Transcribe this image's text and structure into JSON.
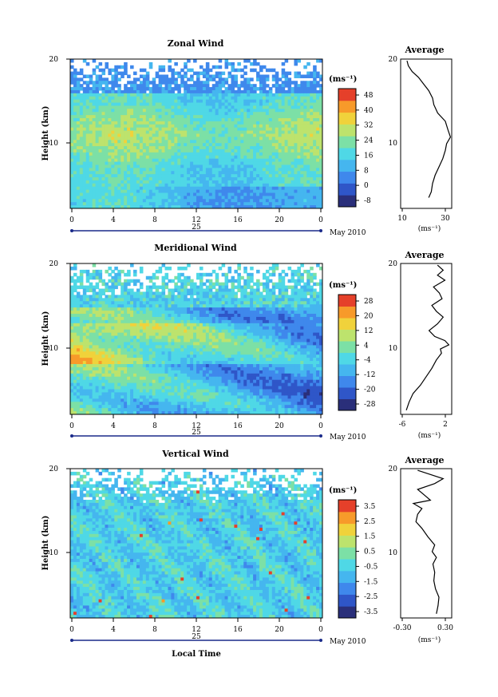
{
  "colorscale": [
    "#2a2f7a",
    "#2f56c8",
    "#3f88ec",
    "#45b6ef",
    "#4fd8e6",
    "#7ce0a6",
    "#bde36d",
    "#f0d23b",
    "#f79a2a",
    "#e5402a"
  ],
  "shared": {
    "date_label": "25",
    "month_label": "May 2010",
    "time_xlabel": "Local Time",
    "height_ylabel": "Height (km)",
    "avg_xlabel": "(ms⁻¹)",
    "x_ticks": [
      "0",
      "4",
      "8",
      "12",
      "16",
      "20",
      "0"
    ],
    "y_ticks": [
      "20",
      "10"
    ]
  },
  "chart_data": [
    {
      "type": "heatmap",
      "title": "Zonal Wind",
      "xlabel": "",
      "ylabel": "Height (km)",
      "x_range": [
        0,
        24
      ],
      "y_range": [
        2,
        20
      ],
      "x_ticks": [
        "0",
        "4",
        "8",
        "12",
        "16",
        "20",
        "0"
      ],
      "y_ticks": [
        "20",
        "10"
      ],
      "colorbar": {
        "unit": "(ms⁻¹)",
        "ticks": [
          "48",
          "40",
          "32",
          "24",
          "16",
          "8",
          "0",
          "-8"
        ],
        "range": [
          -12,
          52
        ]
      },
      "average": {
        "title": "Average",
        "x_range": [
          0,
          40
        ],
        "x_ticks": [
          "10",
          "30"
        ],
        "y_ticks": [
          "20",
          "10"
        ],
        "profile": [
          [
            22,
            3.3
          ],
          [
            24,
            4.0
          ],
          [
            25,
            5.0
          ],
          [
            27,
            6.0
          ],
          [
            30,
            7.0
          ],
          [
            33,
            8.0
          ],
          [
            35,
            9.0
          ],
          [
            36,
            9.8
          ],
          [
            39,
            10.6
          ],
          [
            37,
            11.5
          ],
          [
            35,
            12.5
          ],
          [
            29,
            13.5
          ],
          [
            26,
            14.5
          ],
          [
            25,
            15.3
          ],
          [
            22,
            16.2
          ],
          [
            18,
            17.0
          ],
          [
            14,
            17.8
          ],
          [
            9,
            18.5
          ],
          [
            6,
            19.2
          ],
          [
            5,
            19.8
          ]
        ]
      }
    },
    {
      "type": "heatmap",
      "title": "Meridional Wind",
      "xlabel": "",
      "ylabel": "Height (km)",
      "x_range": [
        0,
        24
      ],
      "y_range": [
        2,
        20
      ],
      "x_ticks": [
        "0",
        "4",
        "8",
        "12",
        "16",
        "20",
        "0"
      ],
      "y_ticks": [
        "20",
        "10"
      ],
      "colorbar": {
        "unit": "(ms⁻¹)",
        "ticks": [
          "28",
          "20",
          "12",
          "4",
          "-4",
          "-12",
          "-20",
          "-28"
        ],
        "range": [
          -32,
          32
        ]
      },
      "average": {
        "title": "Average",
        "x_range": [
          -6,
          3
        ],
        "x_ticks": [
          "-6",
          "2"
        ],
        "y_ticks": [
          "20",
          "10"
        ],
        "profile": [
          [
            -5.0,
            2.5
          ],
          [
            -4.5,
            3.5
          ],
          [
            -3.8,
            4.5
          ],
          [
            -2.5,
            5.5
          ],
          [
            -1.5,
            6.5
          ],
          [
            -0.5,
            7.5
          ],
          [
            0.3,
            8.5
          ],
          [
            1.2,
            9.3
          ],
          [
            1.0,
            9.8
          ],
          [
            2.5,
            10.3
          ],
          [
            1.8,
            10.8
          ],
          [
            0.0,
            11.3
          ],
          [
            -1.0,
            12.0
          ],
          [
            0.5,
            12.8
          ],
          [
            1.5,
            13.6
          ],
          [
            0.3,
            14.3
          ],
          [
            -0.5,
            15.0
          ],
          [
            1.3,
            15.8
          ],
          [
            0.8,
            16.5
          ],
          [
            -0.2,
            17.2
          ],
          [
            1.8,
            18.0
          ],
          [
            0.5,
            18.6
          ],
          [
            1.5,
            19.2
          ],
          [
            0.5,
            19.8
          ]
        ]
      }
    },
    {
      "type": "heatmap",
      "title": "Vertical Wind",
      "xlabel": "Local Time",
      "ylabel": "Height (km)",
      "x_range": [
        0,
        24
      ],
      "y_range": [
        2,
        20
      ],
      "x_ticks": [
        "0",
        "4",
        "8",
        "12",
        "16",
        "20",
        "0"
      ],
      "y_ticks": [
        "20",
        "10"
      ],
      "colorbar": {
        "unit": "(ms⁻¹)",
        "ticks": [
          "3.5",
          "2.5",
          "1.5",
          "0.5",
          "-0.5",
          "-1.5",
          "-2.5",
          "-3.5"
        ],
        "range": [
          -4,
          4
        ]
      },
      "average": {
        "title": "Average",
        "x_range": [
          -0.3,
          0.3
        ],
        "x_ticks": [
          "-0.30",
          "0.30"
        ],
        "y_ticks": [
          "20",
          "10"
        ],
        "profile": [
          [
            0.12,
            2.5
          ],
          [
            0.14,
            3.5
          ],
          [
            0.15,
            4.5
          ],
          [
            0.11,
            5.5
          ],
          [
            0.09,
            6.5
          ],
          [
            0.1,
            7.5
          ],
          [
            0.08,
            8.5
          ],
          [
            0.12,
            9.3
          ],
          [
            0.07,
            10.0
          ],
          [
            0.1,
            10.8
          ],
          [
            0.02,
            11.8
          ],
          [
            -0.05,
            12.8
          ],
          [
            -0.12,
            13.6
          ],
          [
            -0.1,
            14.5
          ],
          [
            -0.05,
            15.2
          ],
          [
            -0.15,
            15.8
          ],
          [
            0.05,
            16.2
          ],
          [
            -0.02,
            16.8
          ],
          [
            -0.1,
            17.5
          ],
          [
            0.1,
            18.2
          ],
          [
            0.2,
            18.8
          ],
          [
            0.05,
            19.3
          ],
          [
            -0.1,
            19.8
          ]
        ]
      }
    }
  ]
}
